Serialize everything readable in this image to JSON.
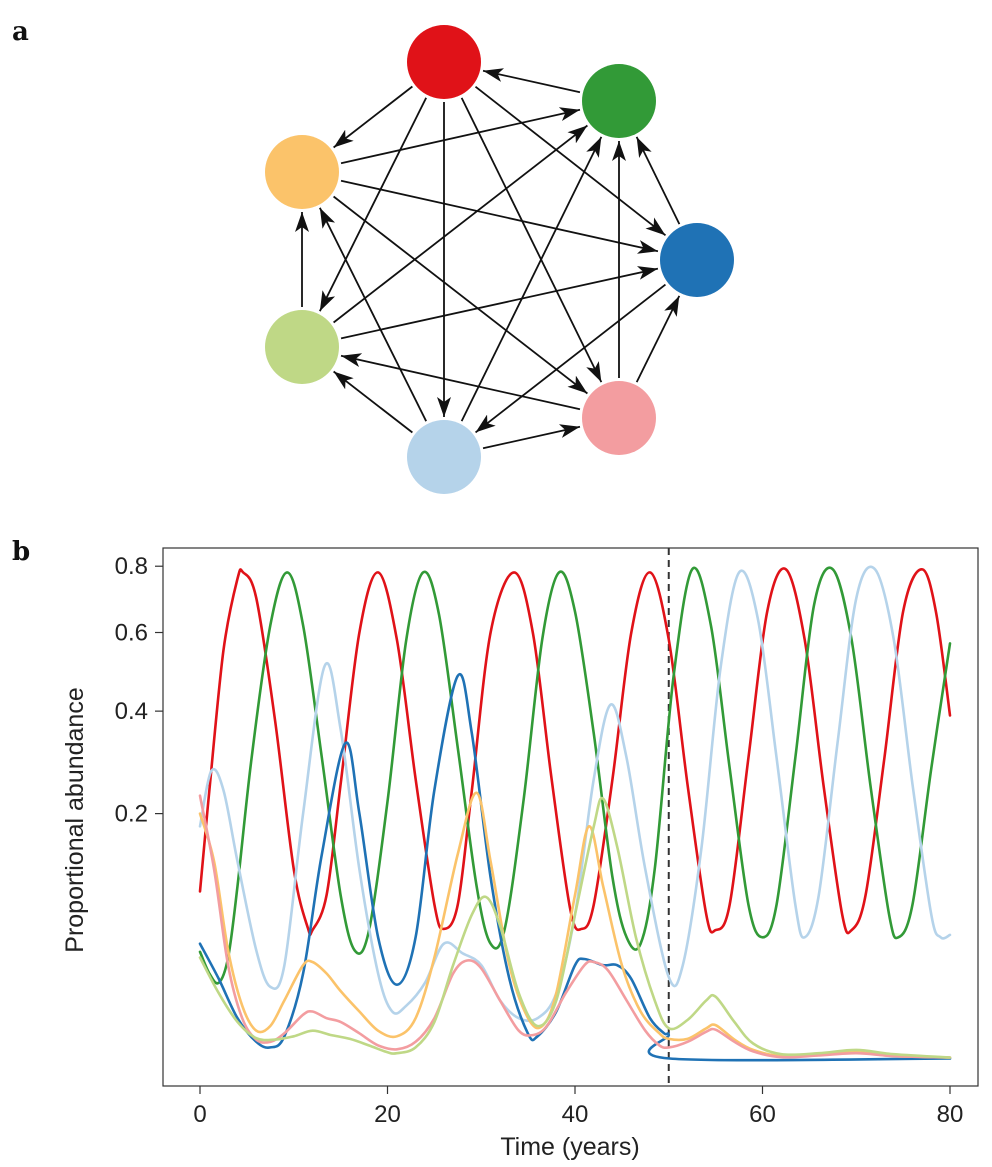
{
  "panel_a": {
    "label": "a",
    "nodes": [
      {
        "id": "red",
        "color": "#e01218"
      },
      {
        "id": "dark-green",
        "color": "#329a37"
      },
      {
        "id": "blue",
        "color": "#1f72b5"
      },
      {
        "id": "pink",
        "color": "#f39da0"
      },
      {
        "id": "light-blue",
        "color": "#b5d3ea"
      },
      {
        "id": "light-green",
        "color": "#bfd886"
      },
      {
        "id": "orange",
        "color": "#fbc36a"
      }
    ],
    "edges": [
      [
        "dark-green",
        "red"
      ],
      [
        "red",
        "orange"
      ],
      [
        "red",
        "blue"
      ],
      [
        "red",
        "pink"
      ],
      [
        "red",
        "light-blue"
      ],
      [
        "red",
        "light-green"
      ],
      [
        "orange",
        "dark-green"
      ],
      [
        "orange",
        "blue"
      ],
      [
        "orange",
        "pink"
      ],
      [
        "light-green",
        "orange"
      ],
      [
        "light-blue",
        "orange"
      ],
      [
        "light-green",
        "dark-green"
      ],
      [
        "light-blue",
        "dark-green"
      ],
      [
        "pink",
        "dark-green"
      ],
      [
        "blue",
        "dark-green"
      ],
      [
        "light-green",
        "blue"
      ],
      [
        "pink",
        "blue"
      ],
      [
        "blue",
        "light-blue"
      ],
      [
        "light-blue",
        "pink"
      ],
      [
        "pink",
        "light-green"
      ],
      [
        "light-blue",
        "light-green"
      ]
    ]
  },
  "chart_data": {
    "label": "b",
    "type": "line",
    "xlabel": "Time (years)",
    "ylabel": "Proportional abundance",
    "xlim": [
      0,
      80
    ],
    "xticks": [
      "0",
      "20",
      "40",
      "60",
      "80"
    ],
    "yticks": [
      "0.2",
      "0.4",
      "0.6",
      "0.8"
    ],
    "ytick_values": [
      0.2,
      0.4,
      0.6,
      0.8
    ],
    "yscale": "sqrt",
    "ylim": [
      0,
      0.86
    ],
    "vline_x": 50,
    "vline_style": "dashed",
    "series": [
      {
        "color": "#e01218",
        "points": [
          [
            0,
            0.094
          ],
          [
            1,
            0.24
          ],
          [
            2.5,
            0.55
          ],
          [
            4,
            0.76
          ],
          [
            4.6,
            0.78
          ],
          [
            6,
            0.7
          ],
          [
            8,
            0.38
          ],
          [
            10,
            0.12
          ],
          [
            11.5,
            0.058
          ],
          [
            12,
            0.056
          ],
          [
            13.5,
            0.09
          ],
          [
            15,
            0.25
          ],
          [
            17,
            0.6
          ],
          [
            19,
            0.78
          ],
          [
            21,
            0.58
          ],
          [
            23,
            0.26
          ],
          [
            25,
            0.08
          ],
          [
            26,
            0.057
          ],
          [
            27.5,
            0.08
          ],
          [
            29,
            0.24
          ],
          [
            31,
            0.6
          ],
          [
            33.5,
            0.78
          ],
          [
            35.5,
            0.6
          ],
          [
            37.5,
            0.26
          ],
          [
            39.5,
            0.075
          ],
          [
            40.7,
            0.057
          ],
          [
            42,
            0.08
          ],
          [
            44,
            0.26
          ],
          [
            46,
            0.6
          ],
          [
            48,
            0.78
          ],
          [
            50,
            0.58
          ],
          [
            52,
            0.25
          ],
          [
            54,
            0.07
          ],
          [
            55,
            0.056
          ],
          [
            56.5,
            0.08
          ],
          [
            58.5,
            0.3
          ],
          [
            60.5,
            0.66
          ],
          [
            62.5,
            0.79
          ],
          [
            64.5,
            0.58
          ],
          [
            66.5,
            0.25
          ],
          [
            68.5,
            0.07
          ],
          [
            69.5,
            0.056
          ],
          [
            71,
            0.09
          ],
          [
            73,
            0.3
          ],
          [
            75,
            0.66
          ],
          [
            77,
            0.79
          ],
          [
            78.5,
            0.66
          ],
          [
            80,
            0.39
          ]
        ]
      },
      {
        "color": "#329a37",
        "points": [
          [
            0,
            0.039
          ],
          [
            1,
            0.025
          ],
          [
            2,
            0.02
          ],
          [
            3,
            0.035
          ],
          [
            4,
            0.1
          ],
          [
            5.5,
            0.3
          ],
          [
            7.5,
            0.62
          ],
          [
            9.3,
            0.78
          ],
          [
            11,
            0.62
          ],
          [
            13,
            0.3
          ],
          [
            15,
            0.09
          ],
          [
            16.5,
            0.04
          ],
          [
            18,
            0.055
          ],
          [
            20,
            0.22
          ],
          [
            22,
            0.58
          ],
          [
            23.8,
            0.78
          ],
          [
            25.5,
            0.65
          ],
          [
            27.5,
            0.32
          ],
          [
            29.5,
            0.1
          ],
          [
            31,
            0.045
          ],
          [
            32.5,
            0.057
          ],
          [
            34.5,
            0.22
          ],
          [
            36.5,
            0.58
          ],
          [
            38.3,
            0.78
          ],
          [
            40,
            0.66
          ],
          [
            42,
            0.35
          ],
          [
            44,
            0.11
          ],
          [
            45.5,
            0.05
          ],
          [
            47,
            0.045
          ],
          [
            48.5,
            0.12
          ],
          [
            50.5,
            0.48
          ],
          [
            52.5,
            0.79
          ],
          [
            54.5,
            0.62
          ],
          [
            56.5,
            0.28
          ],
          [
            58.5,
            0.08
          ],
          [
            60,
            0.05
          ],
          [
            61.5,
            0.08
          ],
          [
            63.5,
            0.3
          ],
          [
            65.5,
            0.68
          ],
          [
            67.5,
            0.79
          ],
          [
            69.5,
            0.58
          ],
          [
            71.5,
            0.25
          ],
          [
            73.5,
            0.07
          ],
          [
            74.5,
            0.05
          ],
          [
            76,
            0.08
          ],
          [
            78,
            0.28
          ],
          [
            80,
            0.57
          ]
        ]
      },
      {
        "color": "#b5d3ea",
        "points": [
          [
            0,
            0.18
          ],
          [
            1.2,
            0.275
          ],
          [
            2.5,
            0.24
          ],
          [
            4,
            0.13
          ],
          [
            6,
            0.04
          ],
          [
            7.5,
            0.018
          ],
          [
            9,
            0.03
          ],
          [
            11,
            0.2
          ],
          [
            13.3,
            0.51
          ],
          [
            15,
            0.36
          ],
          [
            17,
            0.12
          ],
          [
            19,
            0.025
          ],
          [
            20.5,
            0.008
          ],
          [
            22,
            0.01
          ],
          [
            24,
            0.02
          ],
          [
            26,
            0.045
          ],
          [
            28,
            0.038
          ],
          [
            30,
            0.03
          ],
          [
            32,
            0.012
          ],
          [
            34,
            0.006
          ],
          [
            36,
            0.006
          ],
          [
            38,
            0.015
          ],
          [
            40,
            0.07
          ],
          [
            42,
            0.26
          ],
          [
            43.8,
            0.415
          ],
          [
            45.5,
            0.3
          ],
          [
            47.5,
            0.12
          ],
          [
            50,
            0.023
          ],
          [
            51.5,
            0.03
          ],
          [
            53.5,
            0.15
          ],
          [
            55.5,
            0.5
          ],
          [
            57.5,
            0.78
          ],
          [
            59.5,
            0.64
          ],
          [
            61.5,
            0.3
          ],
          [
            63.5,
            0.08
          ],
          [
            64.5,
            0.05
          ],
          [
            66,
            0.09
          ],
          [
            68,
            0.33
          ],
          [
            70,
            0.7
          ],
          [
            72,
            0.79
          ],
          [
            74,
            0.58
          ],
          [
            76,
            0.25
          ],
          [
            78,
            0.07
          ],
          [
            79,
            0.05
          ],
          [
            80,
            0.052
          ]
        ]
      },
      {
        "color": "#1f72b5",
        "points": [
          [
            0,
            0.045
          ],
          [
            2,
            0.022
          ],
          [
            4,
            0.006
          ],
          [
            6,
            0.0012
          ],
          [
            7.5,
            0.0006
          ],
          [
            9,
            0.002
          ],
          [
            11,
            0.025
          ],
          [
            13,
            0.14
          ],
          [
            15.5,
            0.33
          ],
          [
            17,
            0.2
          ],
          [
            19,
            0.05
          ],
          [
            21,
            0.019
          ],
          [
            23,
            0.05
          ],
          [
            25,
            0.24
          ],
          [
            27.5,
            0.485
          ],
          [
            29,
            0.35
          ],
          [
            31,
            0.11
          ],
          [
            33,
            0.022
          ],
          [
            35,
            0.0024
          ],
          [
            36,
            0.002
          ],
          [
            38,
            0.008
          ],
          [
            40,
            0.03
          ],
          [
            41,
            0.034
          ],
          [
            43,
            0.03
          ],
          [
            44.5,
            0.03
          ],
          [
            46,
            0.022
          ],
          [
            48,
            0.006
          ],
          [
            49.5,
            0.0025
          ],
          [
            50,
            0.0022
          ],
          [
            50.1,
            2e-05
          ],
          [
            80,
            2e-05
          ]
        ]
      },
      {
        "color": "#fbc36a",
        "points": [
          [
            0,
            0.2
          ],
          [
            1.5,
            0.13
          ],
          [
            3,
            0.04
          ],
          [
            4.5,
            0.01
          ],
          [
            6,
            0.003
          ],
          [
            7.5,
            0.004
          ],
          [
            9,
            0.012
          ],
          [
            11,
            0.03
          ],
          [
            12,
            0.032
          ],
          [
            13.5,
            0.025
          ],
          [
            15,
            0.016
          ],
          [
            17,
            0.008
          ],
          [
            19,
            0.003
          ],
          [
            21,
            0.002
          ],
          [
            23,
            0.006
          ],
          [
            25,
            0.035
          ],
          [
            27.5,
            0.14
          ],
          [
            29.5,
            0.235
          ],
          [
            31,
            0.13
          ],
          [
            33,
            0.03
          ],
          [
            35,
            0.006
          ],
          [
            36.5,
            0.004
          ],
          [
            38,
            0.015
          ],
          [
            40,
            0.09
          ],
          [
            41.5,
            0.18
          ],
          [
            43,
            0.1
          ],
          [
            45,
            0.03
          ],
          [
            47,
            0.008
          ],
          [
            49,
            0.0025
          ],
          [
            50,
            0.0016
          ],
          [
            52,
            0.0016
          ],
          [
            54,
            0.0035
          ],
          [
            55,
            0.0042
          ],
          [
            57,
            0.0015
          ],
          [
            59,
            0.0004
          ],
          [
            62,
            8e-05
          ],
          [
            66,
            0.00012
          ],
          [
            70,
            0.00025
          ],
          [
            74,
            8e-05
          ],
          [
            80,
            4e-05
          ]
        ]
      },
      {
        "color": "#f39da0",
        "points": [
          [
            0,
            0.23
          ],
          [
            1.5,
            0.12
          ],
          [
            3,
            0.03
          ],
          [
            4.5,
            0.006
          ],
          [
            6,
            0.0015
          ],
          [
            7.5,
            0.0012
          ],
          [
            9,
            0.0025
          ],
          [
            11,
            0.007
          ],
          [
            12,
            0.008
          ],
          [
            13.5,
            0.006
          ],
          [
            15,
            0.005
          ],
          [
            17,
            0.0025
          ],
          [
            19,
            0.0008
          ],
          [
            21,
            0.00045
          ],
          [
            23,
            0.0012
          ],
          [
            25,
            0.006
          ],
          [
            27,
            0.025
          ],
          [
            28.5,
            0.033
          ],
          [
            30,
            0.028
          ],
          [
            32,
            0.012
          ],
          [
            34,
            0.003
          ],
          [
            35.5,
            0.0022
          ],
          [
            37,
            0.004
          ],
          [
            39,
            0.015
          ],
          [
            41,
            0.03
          ],
          [
            42,
            0.032
          ],
          [
            43.5,
            0.027
          ],
          [
            45.5,
            0.012
          ],
          [
            47.5,
            0.003
          ],
          [
            49,
            0.0008
          ],
          [
            50,
            0.0006
          ],
          [
            52,
            0.0012
          ],
          [
            54,
            0.0028
          ],
          [
            55,
            0.0032
          ],
          [
            57,
            0.0012
          ],
          [
            59,
            0.0003
          ],
          [
            62,
            5e-05
          ],
          [
            66,
            0.0001
          ],
          [
            70,
            0.0002
          ],
          [
            74,
            8e-05
          ],
          [
            80,
            4e-05
          ]
        ]
      },
      {
        "color": "#bfd886",
        "points": [
          [
            0,
            0.035
          ],
          [
            2,
            0.015
          ],
          [
            4,
            0.005
          ],
          [
            6,
            0.0017
          ],
          [
            8,
            0.0015
          ],
          [
            10,
            0.002
          ],
          [
            12,
            0.003
          ],
          [
            14,
            0.0022
          ],
          [
            16,
            0.0016
          ],
          [
            18,
            0.0008
          ],
          [
            20,
            0.00025
          ],
          [
            21,
            0.0002
          ],
          [
            23,
            0.0006
          ],
          [
            25,
            0.005
          ],
          [
            27,
            0.03
          ],
          [
            29,
            0.07
          ],
          [
            30.5,
            0.088
          ],
          [
            32,
            0.06
          ],
          [
            34,
            0.015
          ],
          [
            36,
            0.004
          ],
          [
            38,
            0.012
          ],
          [
            40,
            0.07
          ],
          [
            42,
            0.18
          ],
          [
            43,
            0.225
          ],
          [
            44.5,
            0.15
          ],
          [
            46.5,
            0.05
          ],
          [
            48.5,
            0.012
          ],
          [
            50,
            0.0035
          ],
          [
            52,
            0.0055
          ],
          [
            54,
            0.012
          ],
          [
            55,
            0.0135
          ],
          [
            57,
            0.005
          ],
          [
            59,
            0.001
          ],
          [
            62,
            0.00015
          ],
          [
            66,
            0.0002
          ],
          [
            70,
            0.0004
          ],
          [
            74,
            0.00015
          ],
          [
            80,
            4e-05
          ]
        ]
      }
    ]
  }
}
